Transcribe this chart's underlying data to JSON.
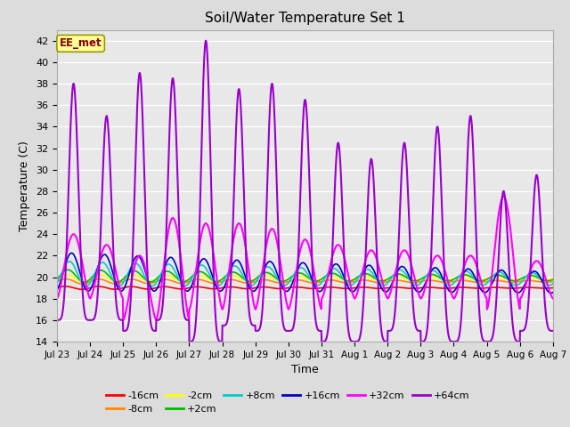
{
  "title": "Soil/Water Temperature Set 1",
  "xlabel": "Time",
  "ylabel": "Temperature (C)",
  "ylim": [
    14,
    43
  ],
  "yticks": [
    14,
    16,
    18,
    20,
    22,
    24,
    26,
    28,
    30,
    32,
    34,
    36,
    38,
    40,
    42
  ],
  "background_color": "#dcdcdc",
  "plot_bg_color": "#e8e8e8",
  "annotation": "EE_met",
  "annotation_box_color": "#ffff99",
  "annotation_text_color": "#8b0000",
  "series": [
    {
      "label": "-16cm",
      "color": "#ff0000"
    },
    {
      "label": "-8cm",
      "color": "#ff8800"
    },
    {
      "label": "-2cm",
      "color": "#ffff00"
    },
    {
      "label": "+2cm",
      "color": "#00bb00"
    },
    {
      "label": "+8cm",
      "color": "#00cccc"
    },
    {
      "label": "+16cm",
      "color": "#0000cc"
    },
    {
      "label": "+32cm",
      "color": "#ff00ff"
    },
    {
      "label": "+64cm",
      "color": "#9900cc"
    }
  ],
  "x_tick_labels": [
    "Jul 23",
    "Jul 24",
    "Jul 25",
    "Jul 26",
    "Jul 27",
    "Jul 28",
    "Jul 29",
    "Jul 30",
    "Jul 31",
    "Aug 1",
    "Aug 2",
    "Aug 3",
    "Aug 4",
    "Aug 5",
    "Aug 6",
    "Aug 7"
  ],
  "p64_peaks": [
    38,
    35,
    39,
    38.5,
    42,
    37.5,
    38,
    36.5,
    32.5,
    31,
    32.5,
    34,
    35,
    28,
    29.5
  ],
  "p64_mins": [
    16,
    16,
    15,
    16,
    14,
    15.5,
    15,
    15,
    14,
    14,
    15,
    14,
    14,
    14,
    15
  ],
  "p32_peaks": [
    24,
    23,
    22,
    25.5,
    25,
    25,
    24.5,
    23.5,
    23,
    22.5,
    22.5,
    22,
    22,
    27.5,
    21.5
  ],
  "p32_mins": [
    18,
    18,
    16,
    16,
    17,
    17,
    17,
    17,
    18,
    18,
    18,
    18,
    18,
    17,
    18
  ]
}
